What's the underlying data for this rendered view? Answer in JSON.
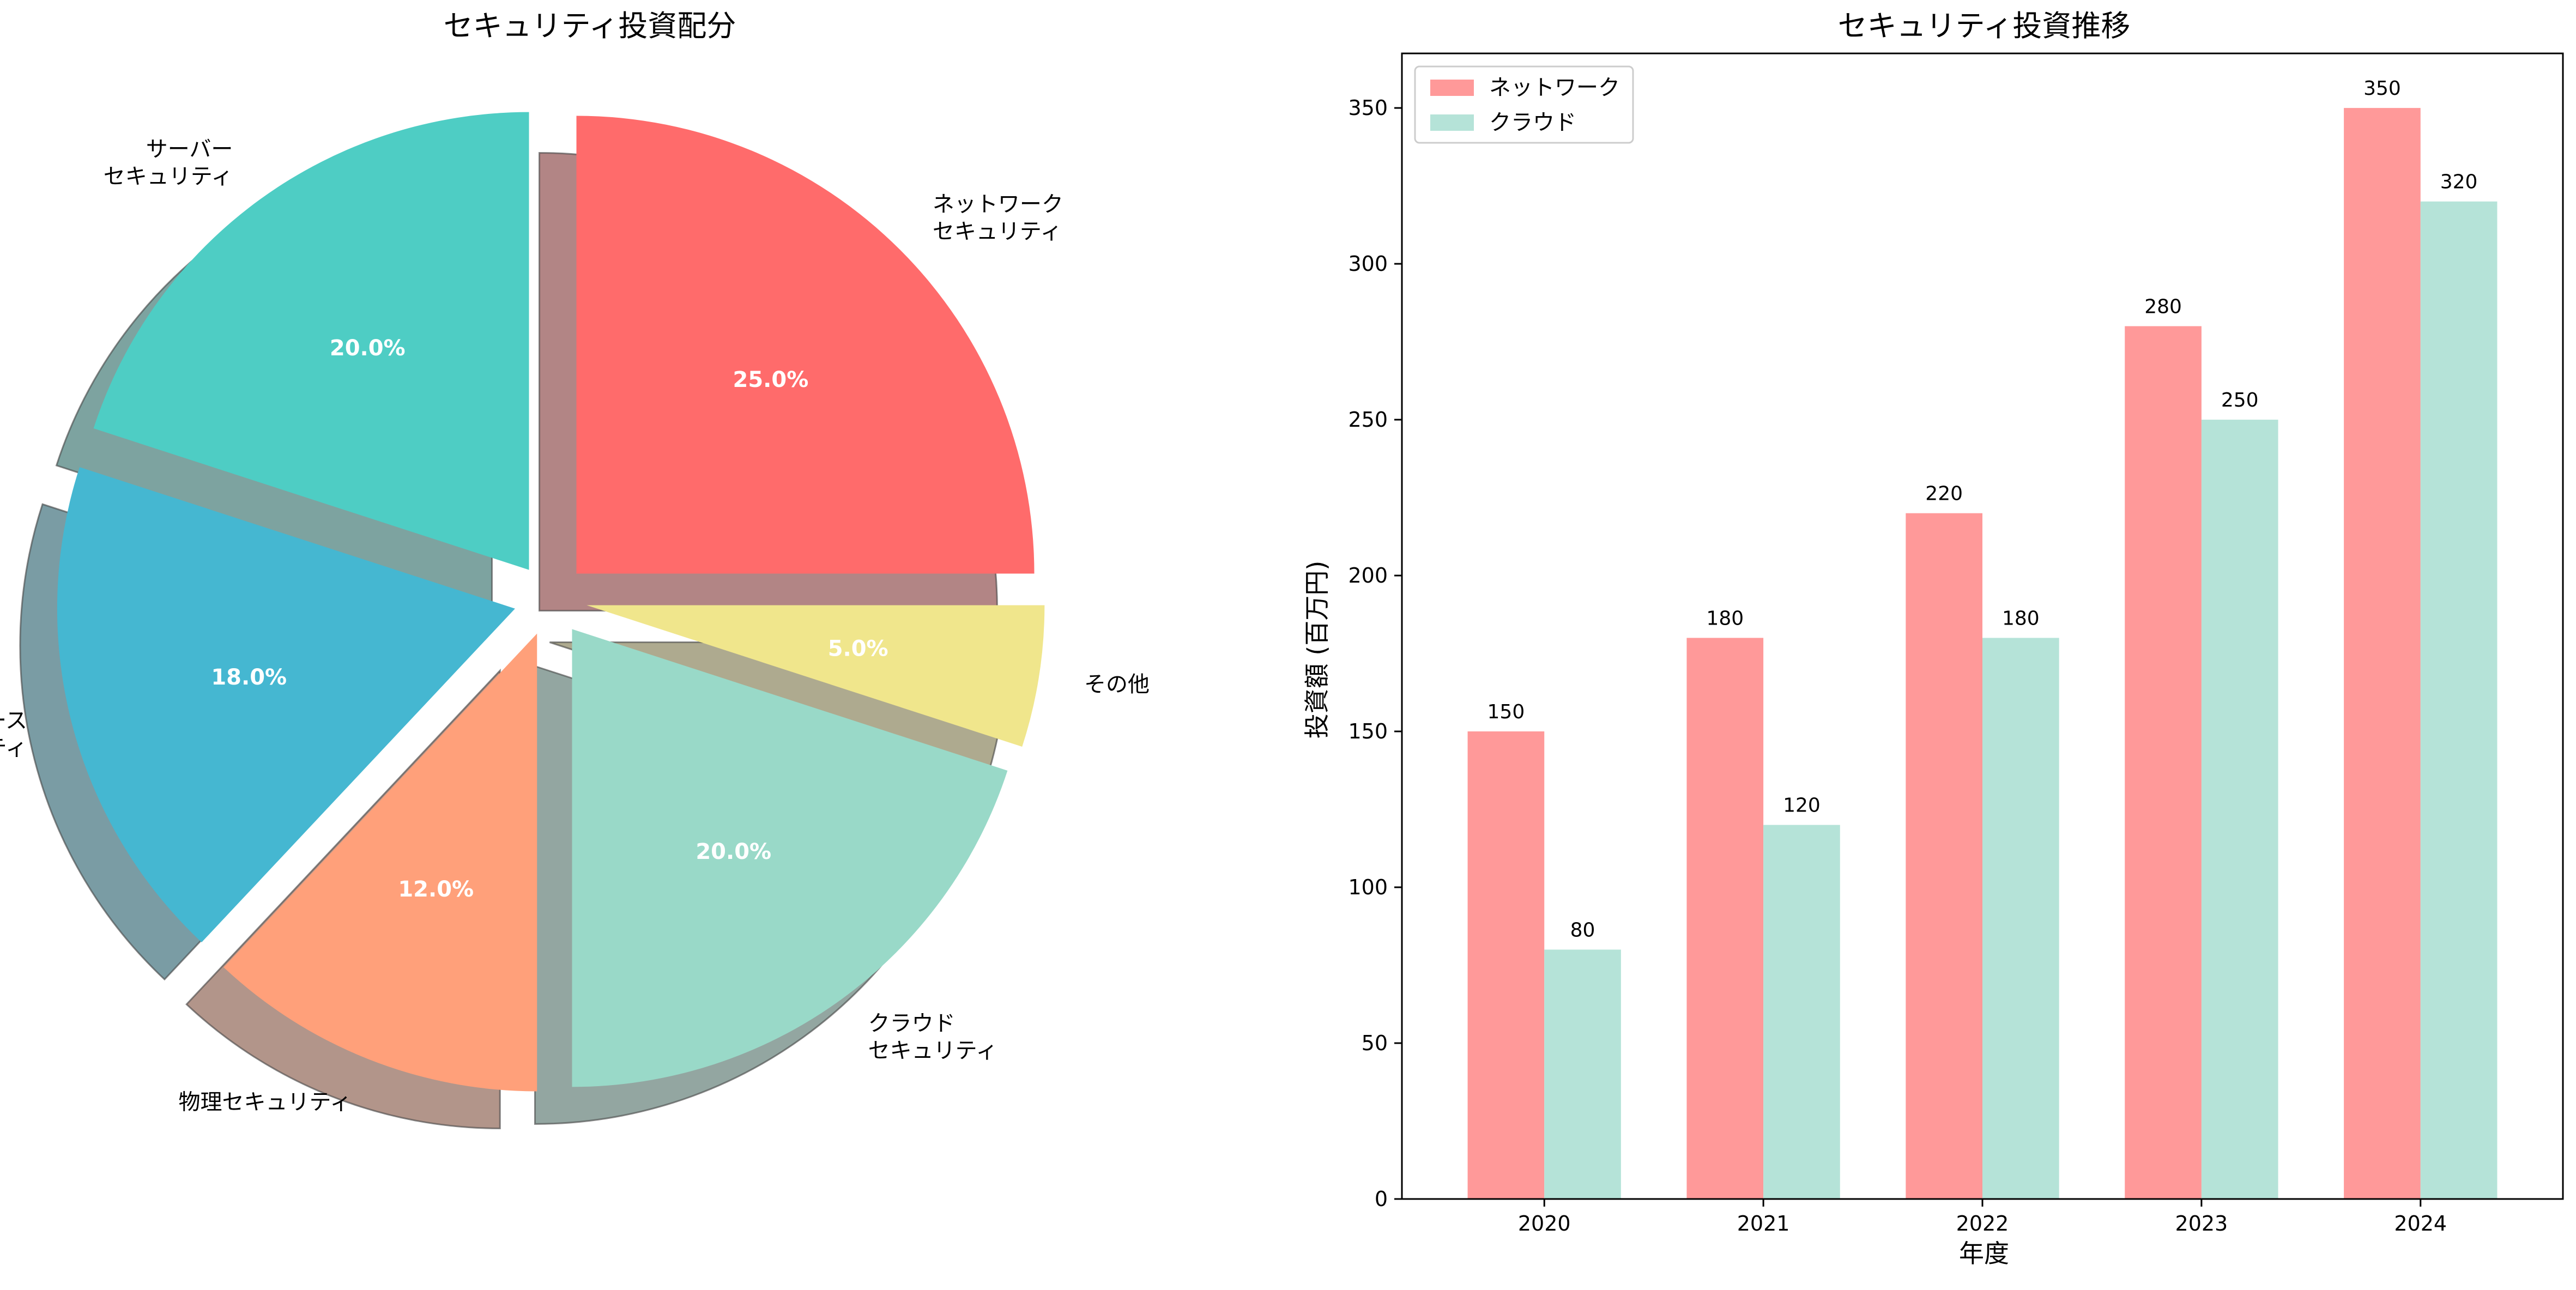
{
  "chart_data": [
    {
      "type": "pie",
      "title": "セキュリティ投資配分",
      "slices": [
        {
          "label": "ネットワーク\nセキュリティ",
          "value": 25.0,
          "pct_label": "25.0%",
          "color": "#ff6b6b"
        },
        {
          "label": "クラウド\nセキュリティ",
          "value": 20.0,
          "pct_label": "20.0%",
          "color": "#99d9c8"
        },
        {
          "label": "サーバー\nセキュリティ",
          "value": 20.0,
          "pct_label": "20.0%",
          "color": "#4ecdc4"
        },
        {
          "label": "データベース\nセキュリティ",
          "value": 18.0,
          "pct_label": "18.0%",
          "color": "#45b7d1"
        },
        {
          "label": "物理セキュリティ",
          "value": 12.0,
          "pct_label": "12.0%",
          "color": "#ffa07a"
        },
        {
          "label": "その他",
          "value": 5.0,
          "pct_label": "5.0%",
          "color": "#f0e68c"
        }
      ],
      "shadow": true,
      "exploded": true
    },
    {
      "type": "bar",
      "title": "セキュリティ投資推移",
      "xlabel": "年度",
      "ylabel": "投資額 (百万円)",
      "categories": [
        "2020",
        "2021",
        "2022",
        "2023",
        "2024"
      ],
      "series": [
        {
          "name": "ネットワーク",
          "values": [
            150,
            180,
            220,
            280,
            350
          ],
          "color": "#ff9999"
        },
        {
          "name": "クラウド",
          "values": [
            80,
            120,
            180,
            250,
            320
          ],
          "color": "#b5e3d8"
        }
      ],
      "ylim": [
        0,
        367.5
      ],
      "yticks": [
        0,
        50,
        100,
        150,
        200,
        250,
        300,
        350
      ],
      "legend": "top-left",
      "grid": false
    }
  ]
}
